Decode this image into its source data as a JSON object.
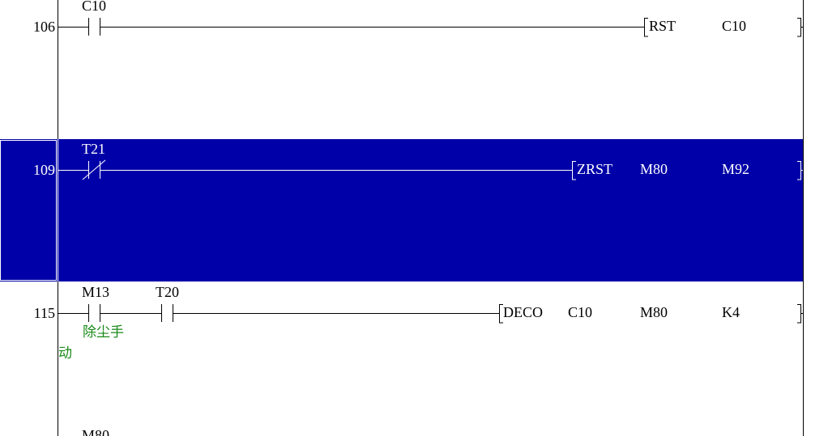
{
  "colors": {
    "selection": "#0000a8",
    "comment": "#1a8a1a",
    "rail": "#000000"
  },
  "rungs": [
    {
      "step": "106",
      "contacts": [
        {
          "device": "C10",
          "type": "normally-open"
        }
      ],
      "instruction": {
        "op": "RST",
        "operands": [
          "C10"
        ]
      }
    },
    {
      "step": "109",
      "selected": true,
      "contacts": [
        {
          "device": "T21",
          "type": "normally-closed"
        }
      ],
      "instruction": {
        "op": "ZRST",
        "operands": [
          "M80",
          "M92"
        ]
      }
    },
    {
      "step": "115",
      "contacts": [
        {
          "device": "M13",
          "type": "normally-open",
          "comment_line1": "除尘手",
          "comment_line2": "动"
        },
        {
          "device": "T20",
          "type": "normally-open"
        }
      ],
      "instruction": {
        "op": "DECO",
        "operands": [
          "C10",
          "M80",
          "K4"
        ]
      }
    },
    {
      "contacts": [
        {
          "device": "M80"
        }
      ]
    }
  ]
}
